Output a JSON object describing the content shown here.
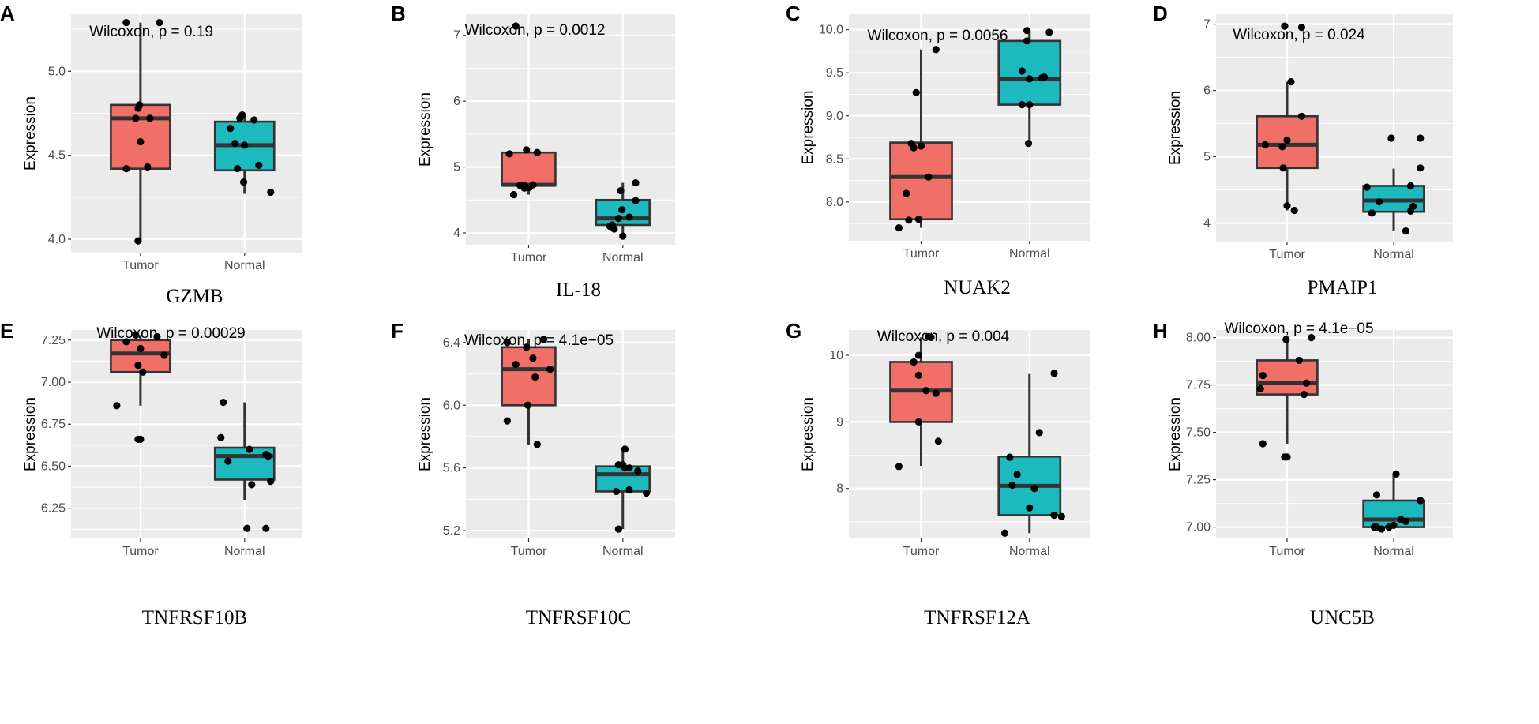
{
  "chart_data": [
    {
      "type": "boxplot",
      "panel": "A",
      "gene": "GZMB",
      "ylabel": "Expression",
      "wilcoxon_label": "Wilcoxon, p = 0.19",
      "ylim": [
        3.92,
        5.34
      ],
      "yticks": [
        4.0,
        4.5,
        5.0
      ],
      "ytick_labels": [
        "4.0",
        "4.5",
        "5.0"
      ],
      "categories": [
        "Tumor",
        "Normal"
      ],
      "groups": [
        {
          "name": "Tumor",
          "color": "#f07068",
          "q1": 4.42,
          "median": 4.72,
          "q3": 4.8,
          "whisker_low": 3.99,
          "whisker_high": 5.29,
          "points": [
            [
              -0.3,
              5.29
            ],
            [
              0.4,
              5.29
            ],
            [
              -0.05,
              4.78
            ],
            [
              -0.02,
              4.8
            ],
            [
              0.0,
              4.58
            ],
            [
              -0.3,
              4.42
            ],
            [
              0.15,
              4.43
            ],
            [
              -0.05,
              3.99
            ],
            [
              -0.1,
              4.72
            ],
            [
              0.2,
              4.72
            ]
          ]
        },
        {
          "name": "Normal",
          "color": "#1cb9bf",
          "q1": 4.41,
          "median": 4.56,
          "q3": 4.7,
          "whisker_low": 4.27,
          "whisker_high": 4.74,
          "points": [
            [
              -0.1,
              4.72
            ],
            [
              -0.05,
              4.74
            ],
            [
              0.2,
              4.71
            ],
            [
              -0.3,
              4.66
            ],
            [
              -0.2,
              4.57
            ],
            [
              0.0,
              4.56
            ],
            [
              0.3,
              4.44
            ],
            [
              -0.15,
              4.42
            ],
            [
              -0.02,
              4.34
            ],
            [
              0.55,
              4.28
            ]
          ]
        }
      ]
    },
    {
      "type": "boxplot",
      "panel": "B",
      "gene": "IL-18",
      "ylabel": "Expression",
      "wilcoxon_label": "Wilcoxon, p = 0.0012",
      "ylim": [
        3.82,
        7.32
      ],
      "yticks": [
        4,
        5,
        6,
        7
      ],
      "ytick_labels": [
        "4",
        "5",
        "6",
        "7"
      ],
      "categories": [
        "Tumor",
        "Normal"
      ],
      "groups": [
        {
          "name": "Tumor",
          "color": "#f07068",
          "q1": 4.72,
          "median": 4.73,
          "q3": 5.22,
          "whisker_low": 4.58,
          "whisker_high": 5.26,
          "points": [
            [
              -0.3,
              7.14
            ],
            [
              -0.45,
              5.2
            ],
            [
              -0.05,
              5.26
            ],
            [
              0.2,
              5.22
            ],
            [
              -0.35,
              4.58
            ],
            [
              -0.2,
              4.72
            ],
            [
              -0.1,
              4.72
            ],
            [
              0.02,
              4.69
            ],
            [
              0.1,
              4.73
            ],
            [
              -0.1,
              4.68
            ]
          ]
        },
        {
          "name": "Normal",
          "color": "#1cb9bf",
          "q1": 4.12,
          "median": 4.22,
          "q3": 4.5,
          "whisker_low": 3.95,
          "whisker_high": 4.76,
          "points": [
            [
              0.3,
              4.76
            ],
            [
              -0.05,
              4.64
            ],
            [
              -0.02,
              4.35
            ],
            [
              0.3,
              4.49
            ],
            [
              0.15,
              4.24
            ],
            [
              -0.1,
              4.22
            ],
            [
              -0.25,
              4.12
            ],
            [
              -0.2,
              4.06
            ],
            [
              0.0,
              3.95
            ],
            [
              -0.3,
              4.1
            ]
          ]
        }
      ]
    },
    {
      "type": "boxplot",
      "panel": "C",
      "gene": "NUAK2",
      "ylabel": "Expression",
      "wilcoxon_label": "Wilcoxon, p = 0.0056",
      "ylim": [
        7.55,
        10.18
      ],
      "yticks": [
        8.0,
        8.5,
        9.0,
        9.5,
        10.0
      ],
      "ytick_labels": [
        "8.0",
        "8.5",
        "9.0",
        "9.5",
        "10.0"
      ],
      "categories": [
        "Tumor",
        "Normal"
      ],
      "groups": [
        {
          "name": "Tumor",
          "color": "#f07068",
          "q1": 7.8,
          "median": 8.29,
          "q3": 8.69,
          "whisker_low": 7.7,
          "whisker_high": 9.77,
          "points": [
            [
              0.3,
              9.77
            ],
            [
              -0.1,
              9.27
            ],
            [
              -0.2,
              8.68
            ],
            [
              -0.15,
              8.63
            ],
            [
              0.15,
              8.29
            ],
            [
              -0.3,
              8.1
            ],
            [
              -0.25,
              7.79
            ],
            [
              -0.05,
              7.8
            ],
            [
              -0.45,
              7.7
            ],
            [
              0.0,
              8.65
            ]
          ]
        },
        {
          "name": "Normal",
          "color": "#1cb9bf",
          "q1": 9.13,
          "median": 9.43,
          "q3": 9.87,
          "whisker_low": 8.68,
          "whisker_high": 9.99,
          "points": [
            [
              -0.05,
              9.99
            ],
            [
              0.4,
              9.97
            ],
            [
              -0.05,
              9.87
            ],
            [
              -0.15,
              9.52
            ],
            [
              0.0,
              9.43
            ],
            [
              0.25,
              9.44
            ],
            [
              -0.15,
              9.13
            ],
            [
              0.0,
              9.13
            ],
            [
              -0.02,
              8.68
            ],
            [
              0.3,
              9.45
            ]
          ]
        }
      ]
    },
    {
      "type": "boxplot",
      "panel": "D",
      "gene": "PMAIP1",
      "ylabel": "Expression",
      "wilcoxon_label": "Wilcoxon, p = 0.024",
      "ylim": [
        3.72,
        7.15
      ],
      "yticks": [
        4,
        5,
        6,
        7
      ],
      "ytick_labels": [
        "4",
        "5",
        "6",
        "7"
      ],
      "categories": [
        "Tumor",
        "Normal"
      ],
      "groups": [
        {
          "name": "Tumor",
          "color": "#f07068",
          "q1": 4.83,
          "median": 5.18,
          "q3": 5.61,
          "whisker_low": 4.19,
          "whisker_high": 6.13,
          "points": [
            [
              -0.05,
              6.97
            ],
            [
              0.3,
              6.95
            ],
            [
              0.08,
              6.13
            ],
            [
              0.3,
              5.61
            ],
            [
              -0.45,
              5.18
            ],
            [
              -0.1,
              5.15
            ],
            [
              0.0,
              5.25
            ],
            [
              -0.08,
              4.83
            ],
            [
              0.0,
              4.26
            ],
            [
              0.15,
              4.19
            ]
          ]
        },
        {
          "name": "Normal",
          "color": "#1cb9bf",
          "q1": 4.17,
          "median": 4.34,
          "q3": 4.56,
          "whisker_low": 3.88,
          "whisker_high": 4.82,
          "points": [
            [
              -0.05,
              5.28
            ],
            [
              0.55,
              5.28
            ],
            [
              0.55,
              4.83
            ],
            [
              0.35,
              4.56
            ],
            [
              -0.55,
              4.54
            ],
            [
              -0.3,
              4.32
            ],
            [
              0.4,
              4.25
            ],
            [
              -0.45,
              4.15
            ],
            [
              0.35,
              4.18
            ],
            [
              0.25,
              3.88
            ]
          ]
        }
      ]
    },
    {
      "type": "boxplot",
      "panel": "E",
      "gene": "TNFRSF10B",
      "ylabel": "Expression",
      "wilcoxon_label": "Wilcoxon, p = 0.00029",
      "ylim": [
        6.07,
        7.31
      ],
      "yticks": [
        6.25,
        6.5,
        6.75,
        7.0,
        7.25
      ],
      "ytick_labels": [
        "6.25",
        "6.50",
        "6.75",
        "7.00",
        "7.25"
      ],
      "categories": [
        "Tumor",
        "Normal"
      ],
      "groups": [
        {
          "name": "Tumor",
          "color": "#f07068",
          "q1": 7.06,
          "median": 7.17,
          "q3": 7.25,
          "whisker_low": 6.86,
          "whisker_high": 7.28,
          "points": [
            [
              -0.5,
              6.86
            ],
            [
              -0.05,
              6.66
            ],
            [
              0.0,
              6.66
            ],
            [
              -0.3,
              7.24
            ],
            [
              -0.1,
              7.28
            ],
            [
              -0.05,
              7.1
            ],
            [
              0.0,
              7.2
            ],
            [
              0.05,
              7.06
            ],
            [
              0.35,
              7.27
            ],
            [
              0.5,
              7.16
            ]
          ]
        },
        {
          "name": "Normal",
          "color": "#1cb9bf",
          "q1": 6.42,
          "median": 6.56,
          "q3": 6.61,
          "whisker_low": 6.3,
          "whisker_high": 6.88,
          "points": [
            [
              -0.45,
              6.88
            ],
            [
              -0.5,
              6.67
            ],
            [
              -0.35,
              6.53
            ],
            [
              0.1,
              6.6
            ],
            [
              0.45,
              6.57
            ],
            [
              0.5,
              6.56
            ],
            [
              0.55,
              6.41
            ],
            [
              0.15,
              6.39
            ],
            [
              0.05,
              6.13
            ],
            [
              0.45,
              6.13
            ]
          ]
        }
      ]
    },
    {
      "type": "boxplot",
      "panel": "F",
      "gene": "TNFRSF10C",
      "ylabel": "Expression",
      "wilcoxon_label": "Wilcoxon, p = 4.1e−05",
      "ylim": [
        5.15,
        6.48
      ],
      "yticks": [
        5.2,
        5.6,
        6.0,
        6.4
      ],
      "ytick_labels": [
        "5.2",
        "5.6",
        "6.0",
        "6.4"
      ],
      "categories": [
        "Tumor",
        "Normal"
      ],
      "groups": [
        {
          "name": "Tumor",
          "color": "#f07068",
          "q1": 6.0,
          "median": 6.23,
          "q3": 6.37,
          "whisker_low": 5.75,
          "whisker_high": 6.42,
          "points": [
            [
              -0.5,
              6.4
            ],
            [
              -0.05,
              6.37
            ],
            [
              0.35,
              6.42
            ],
            [
              -0.3,
              6.26
            ],
            [
              0.5,
              6.23
            ],
            [
              0.15,
              6.18
            ],
            [
              -0.02,
              6.0
            ],
            [
              -0.5,
              5.9
            ],
            [
              0.2,
              5.75
            ],
            [
              0.1,
              6.3
            ]
          ]
        },
        {
          "name": "Normal",
          "color": "#1cb9bf",
          "q1": 5.45,
          "median": 5.56,
          "q3": 5.61,
          "whisker_low": 5.21,
          "whisker_high": 5.72,
          "points": [
            [
              0.05,
              5.72
            ],
            [
              -0.1,
              5.62
            ],
            [
              0.05,
              5.6
            ],
            [
              0.15,
              5.6
            ],
            [
              0.35,
              5.58
            ],
            [
              -0.15,
              5.45
            ],
            [
              0.15,
              5.46
            ],
            [
              0.55,
              5.44
            ],
            [
              -0.1,
              5.21
            ],
            [
              0.0,
              5.62
            ]
          ]
        }
      ]
    },
    {
      "type": "boxplot",
      "panel": "G",
      "gene": "TNFRSF12A",
      "ylabel": "Expression",
      "wilcoxon_label": "Wilcoxon, p = 0.004",
      "ylim": [
        7.25,
        10.38
      ],
      "yticks": [
        8,
        9,
        10
      ],
      "ytick_labels": [
        "8",
        "9",
        "10"
      ],
      "categories": [
        "Tumor",
        "Normal"
      ],
      "groups": [
        {
          "name": "Tumor",
          "color": "#f07068",
          "q1": 9.0,
          "median": 9.47,
          "q3": 9.9,
          "whisker_low": 8.34,
          "whisker_high": 10.27,
          "points": [
            [
              0.15,
              10.28
            ],
            [
              0.2,
              10.27
            ],
            [
              -0.15,
              9.9
            ],
            [
              -0.05,
              9.7
            ],
            [
              0.1,
              9.47
            ],
            [
              0.3,
              9.43
            ],
            [
              -0.05,
              9.0
            ],
            [
              0.35,
              8.71
            ],
            [
              -0.45,
              8.33
            ],
            [
              -0.05,
              10.0
            ]
          ]
        },
        {
          "name": "Normal",
          "color": "#1cb9bf",
          "q1": 7.6,
          "median": 8.04,
          "q3": 8.48,
          "whisker_low": 7.33,
          "whisker_high": 9.72,
          "points": [
            [
              0.5,
              9.73
            ],
            [
              0.2,
              8.84
            ],
            [
              -0.4,
              8.47
            ],
            [
              -0.25,
              8.21
            ],
            [
              -0.35,
              8.05
            ],
            [
              0.0,
              7.71
            ],
            [
              0.5,
              7.6
            ],
            [
              0.65,
              7.58
            ],
            [
              -0.5,
              7.33
            ],
            [
              0.1,
              8.0
            ]
          ]
        }
      ]
    },
    {
      "type": "boxplot",
      "panel": "H",
      "gene": "UNC5B",
      "ylabel": "Expression",
      "wilcoxon_label": "Wilcoxon, p = 4.1e−05",
      "ylim": [
        6.94,
        8.04
      ],
      "yticks": [
        7.0,
        7.25,
        7.5,
        7.75,
        8.0
      ],
      "ytick_labels": [
        "7.00",
        "7.25",
        "7.50",
        "7.75",
        "8.00"
      ],
      "categories": [
        "Tumor",
        "Normal"
      ],
      "groups": [
        {
          "name": "Tumor",
          "color": "#f07068",
          "q1": 7.7,
          "median": 7.76,
          "q3": 7.88,
          "whisker_low": 7.44,
          "whisker_high": 7.99,
          "points": [
            [
              -0.02,
              7.99
            ],
            [
              0.5,
              8.0
            ],
            [
              0.25,
              7.88
            ],
            [
              -0.5,
              7.8
            ],
            [
              -0.55,
              7.73
            ],
            [
              0.4,
              7.76
            ],
            [
              0.35,
              7.7
            ],
            [
              -0.5,
              7.44
            ],
            [
              -0.05,
              7.37
            ],
            [
              0.0,
              7.37
            ]
          ]
        },
        {
          "name": "Normal",
          "color": "#1cb9bf",
          "q1": 7.0,
          "median": 7.04,
          "q3": 7.14,
          "whisker_low": 6.99,
          "whisker_high": 7.28,
          "points": [
            [
              0.05,
              7.28
            ],
            [
              -0.35,
              7.17
            ],
            [
              0.55,
              7.14
            ],
            [
              0.15,
              7.04
            ],
            [
              0.25,
              7.03
            ],
            [
              -0.4,
              7.0
            ],
            [
              -0.35,
              7.0
            ],
            [
              -0.25,
              6.99
            ],
            [
              -0.1,
              7.0
            ],
            [
              0.0,
              7.01
            ]
          ]
        }
      ]
    }
  ]
}
